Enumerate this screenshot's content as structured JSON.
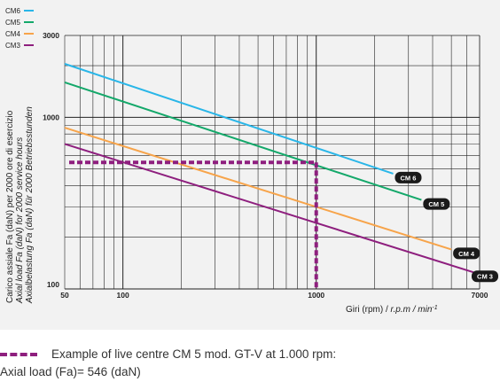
{
  "chart_data": {
    "type": "line",
    "scale": {
      "x": "log",
      "y": "log"
    },
    "xlim": [
      50,
      7000
    ],
    "ylim": [
      100,
      3000
    ],
    "x_ticks": [
      "50",
      "100",
      "1000",
      "7000"
    ],
    "y_ticks": [
      "3000",
      "1000",
      "100"
    ],
    "xlabel_prefix": "Giri (rpm) / ",
    "xlabel_italic": "r.p.m / min",
    "xlabel_sup": "-1",
    "ylabel_lines": [
      "Carico assiale Fa (daN) per 2000 ore di esercizio",
      "Axial load Fa (daN) for 2000 service hours",
      "Axialbelastung Fa (daN) für 2000 Betriebsstunden"
    ],
    "legend": [
      {
        "label": "CM6",
        "color": "#29b6e8"
      },
      {
        "label": "CM5",
        "color": "#14a86a"
      },
      {
        "label": "CM4",
        "color": "#f7a44a"
      },
      {
        "label": "CM3",
        "color": "#8e1f7e"
      }
    ],
    "series": [
      {
        "name": "CM 6",
        "color": "#29b6e8",
        "x": [
          50,
          2500
        ],
        "y": [
          2050,
          470
        ]
      },
      {
        "name": "CM 5",
        "color": "#14a86a",
        "x": [
          50,
          3500
        ],
        "y": [
          1600,
          330
        ]
      },
      {
        "name": "CM 4",
        "color": "#f7a44a",
        "x": [
          50,
          5000
        ],
        "y": [
          870,
          170
        ]
      },
      {
        "name": "CM 3",
        "color": "#8e1f7e",
        "x": [
          50,
          6500
        ],
        "y": [
          700,
          125
        ]
      }
    ],
    "annotation": {
      "color": "#8e1f7e",
      "x": 1000,
      "y": 546,
      "series": "CM 5"
    }
  },
  "caption": {
    "line1": "Example of live centre CM 5 mod. GT-V at 1.000 rpm:",
    "line2": "Axial load (Fa)= 546 (daN)"
  }
}
